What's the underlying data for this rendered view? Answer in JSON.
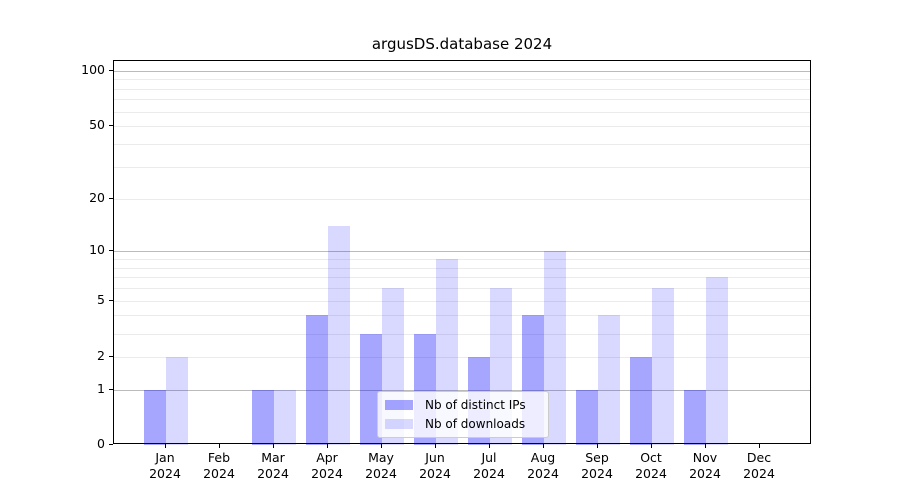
{
  "title": "argusDS.database 2024",
  "chart_data": {
    "type": "bar",
    "title": "argusDS.database 2024",
    "categories": [
      "Jan 2024",
      "Feb 2024",
      "Mar 2024",
      "Apr 2024",
      "May 2024",
      "Jun 2024",
      "Jul 2024",
      "Aug 2024",
      "Sep 2024",
      "Oct 2024",
      "Nov 2024",
      "Dec 2024"
    ],
    "months": [
      "Jan",
      "Feb",
      "Mar",
      "Apr",
      "May",
      "Jun",
      "Jul",
      "Aug",
      "Sep",
      "Oct",
      "Nov",
      "Dec"
    ],
    "year": "2024",
    "series": [
      {
        "name": "Nb of distinct IPs",
        "color": "#0000ff",
        "alpha": 0.35,
        "values": [
          1,
          0,
          1,
          4,
          3,
          3,
          2,
          4,
          1,
          2,
          1,
          0
        ]
      },
      {
        "name": "Nb of downloads",
        "color": "#0000ff",
        "alpha": 0.15,
        "values": [
          2,
          0,
          1,
          14,
          6,
          9,
          6,
          10,
          4,
          6,
          7,
          0
        ]
      }
    ],
    "y_axis": {
      "scale": "log1p",
      "ylim": [
        0,
        110
      ],
      "tick_values": [
        0,
        1,
        2,
        5,
        10,
        20,
        50,
        100
      ],
      "tick_labels": [
        "0",
        "1",
        "2",
        "5",
        "10",
        "20",
        "50",
        "100"
      ],
      "major_gridlines": [
        1,
        10,
        100
      ],
      "minor_gridlines": [
        2,
        3,
        4,
        5,
        6,
        7,
        8,
        9,
        20,
        30,
        40,
        50,
        60,
        70,
        80,
        90
      ]
    },
    "x_axis": {
      "tick_count": 12
    },
    "legend": {
      "position": "lower center",
      "entries": [
        "Nb of distinct IPs",
        "Nb of downloads"
      ]
    },
    "grid": true
  }
}
